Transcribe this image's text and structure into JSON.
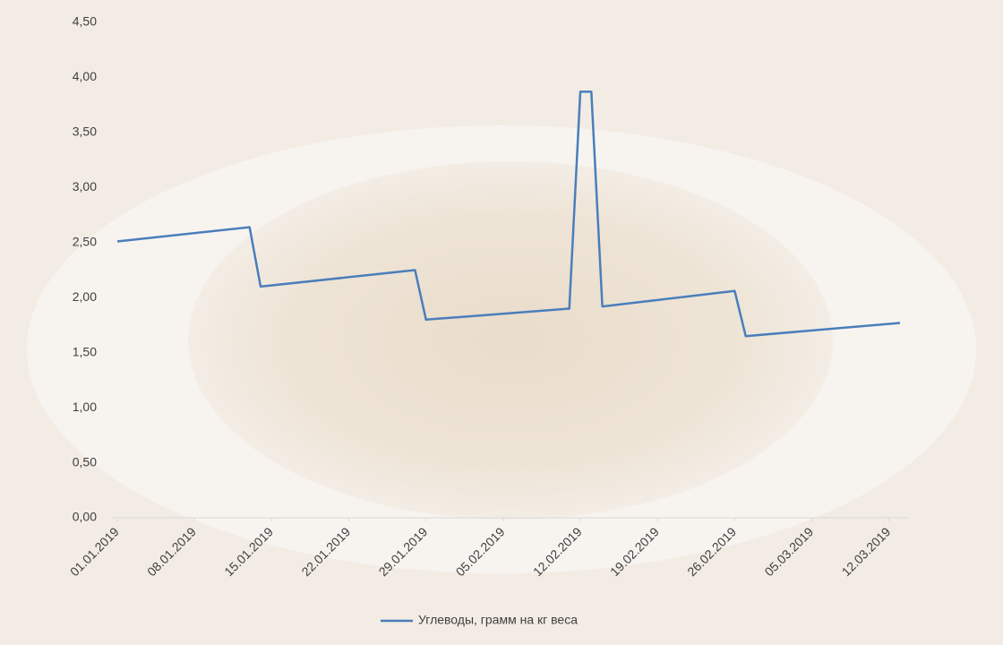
{
  "chart_data": {
    "type": "line",
    "x": [
      "01.01.2019",
      "13.01.2019",
      "14.01.2019",
      "28.01.2019",
      "29.01.2019",
      "11.02.2019",
      "12.02.2019",
      "13.02.2019",
      "14.02.2019",
      "26.02.2019",
      "27.02.2019",
      "13.03.2019"
    ],
    "series": [
      {
        "name": "Углеводы, грамм на кг веса",
        "color": "#4a7ebb",
        "values": [
          2.51,
          2.64,
          2.1,
          2.25,
          1.8,
          1.9,
          3.87,
          3.87,
          1.92,
          2.06,
          1.65,
          1.77
        ]
      }
    ],
    "xlim": [
      "01.01.2019",
      "13.03.2019"
    ],
    "xticks": [
      "01.01.2019",
      "08.01.2019",
      "15.01.2019",
      "22.01.2019",
      "29.01.2019",
      "05.02.2019",
      "12.02.2019",
      "19.02.2019",
      "26.02.2019",
      "05.03.2019",
      "12.03.2019"
    ],
    "ylim": [
      0,
      4.5
    ],
    "yticks": [
      {
        "value": 0,
        "label": "0,00"
      },
      {
        "value": 0.5,
        "label": "0,50"
      },
      {
        "value": 1,
        "label": "1,00"
      },
      {
        "value": 1.5,
        "label": "1,50"
      },
      {
        "value": 2,
        "label": "2,00"
      },
      {
        "value": 2.5,
        "label": "2,50"
      },
      {
        "value": 3,
        "label": "3,00"
      },
      {
        "value": 3.5,
        "label": "3,50"
      },
      {
        "value": 4,
        "label": "4,00"
      },
      {
        "value": 4.5,
        "label": "4,50"
      }
    ],
    "grid": false,
    "legend": "bottom"
  }
}
